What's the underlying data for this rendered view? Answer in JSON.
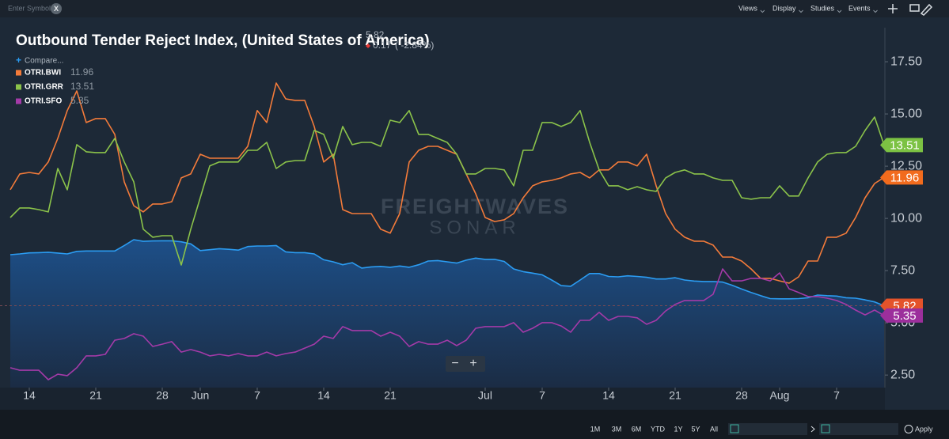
{
  "toolbar": {
    "search_placeholder": "Enter Symbol",
    "clear": "X",
    "menus": [
      "Views",
      "Display",
      "Studies",
      "Events"
    ]
  },
  "chart_data": {
    "type": "line",
    "title": "Outbound Tender Reject Index, (United States of America)",
    "change": "0.17",
    "change_pct": "( -2.84%)",
    "compare": "Compare...",
    "watermark": [
      "FREIGHTWAVES",
      "SONAR"
    ],
    "zoom": [
      "−",
      "+"
    ],
    "x": [
      "May 12",
      "May 13",
      "May 14",
      "May 15",
      "May 16",
      "May 17",
      "May 18",
      "May 19",
      "May 20",
      "May 21",
      "May 22",
      "May 23",
      "May 24",
      "May 25",
      "May 26",
      "May 27",
      "May 28",
      "May 29",
      "May 30",
      "May 31",
      "Jun 1",
      "Jun 2",
      "Jun 3",
      "Jun 4",
      "Jun 5",
      "Jun 6",
      "Jun 7",
      "Jun 8",
      "Jun 9",
      "Jun 10",
      "Jun 11",
      "Jun 12",
      "Jun 13",
      "Jun 14",
      "Jun 15",
      "Jun 16",
      "Jun 17",
      "Jun 18",
      "Jun 19",
      "Jun 20",
      "Jun 21",
      "Jun 22",
      "Jun 23",
      "Jun 24",
      "Jun 25",
      "Jun 26",
      "Jun 27",
      "Jun 28",
      "Jun 29",
      "Jun 30",
      "Jul 1",
      "Jul 2",
      "Jul 3",
      "Jul 4",
      "Jul 5",
      "Jul 6",
      "Jul 7",
      "Jul 8",
      "Jul 9",
      "Jul 10",
      "Jul 11",
      "Jul 12",
      "Jul 13",
      "Jul 14",
      "Jul 15",
      "Jul 16",
      "Jul 17",
      "Jul 18",
      "Jul 19",
      "Jul 20",
      "Jul 21",
      "Jul 22",
      "Jul 23",
      "Jul 24",
      "Jul 25",
      "Jul 26",
      "Jul 27",
      "Jul 28",
      "Jul 29",
      "Jul 30",
      "Jul 31",
      "Aug 1",
      "Aug 2",
      "Aug 3",
      "Aug 4",
      "Aug 5",
      "Aug 6",
      "Aug 7",
      "Aug 8",
      "Aug 9",
      "Aug 10",
      "Aug 11",
      "Aug 12"
    ],
    "xticks": [
      {
        "value": "May 14",
        "label": "14"
      },
      {
        "value": "May 21",
        "label": "21"
      },
      {
        "value": "May 28",
        "label": "28"
      },
      {
        "value": "Jun 1",
        "label": "Jun"
      },
      {
        "value": "Jun 7",
        "label": "7"
      },
      {
        "value": "Jun 14",
        "label": "14"
      },
      {
        "value": "Jun 21",
        "label": "21"
      },
      {
        "value": "Jul 1",
        "label": "Jul"
      },
      {
        "value": "Jul 7",
        "label": "7"
      },
      {
        "value": "Jul 14",
        "label": "14"
      },
      {
        "value": "Jul 21",
        "label": "21"
      },
      {
        "value": "Jul 28",
        "label": "28"
      },
      {
        "value": "Aug 1",
        "label": "Aug"
      },
      {
        "value": "Aug 7",
        "label": "7"
      }
    ],
    "ylim": [
      1.9,
      19.13
    ],
    "yticks": [
      {
        "value": 2.5,
        "label": "2.50"
      },
      {
        "value": 5,
        "label": "5.00"
      },
      {
        "value": 7.5,
        "label": "7.50"
      },
      {
        "value": 10,
        "label": "10.00"
      },
      {
        "value": 12.5,
        "label": "12.50"
      },
      {
        "value": 15,
        "label": "15.00"
      },
      {
        "value": 17.5,
        "label": "17.50"
      }
    ],
    "grid": false,
    "series": [
      {
        "color": "#2b9cf2",
        "area": true,
        "badge_color": "#e4532a",
        "last_label": "5.82",
        "values": [
          8.26,
          8.3,
          8.35,
          8.36,
          8.38,
          8.34,
          8.3,
          8.42,
          8.44,
          8.44,
          8.44,
          8.44,
          8.7,
          8.98,
          8.9,
          8.92,
          8.93,
          8.93,
          8.88,
          8.78,
          8.46,
          8.5,
          8.55,
          8.52,
          8.48,
          8.65,
          8.68,
          8.68,
          8.7,
          8.4,
          8.36,
          8.36,
          8.3,
          8.02,
          7.92,
          7.78,
          7.88,
          7.62,
          7.68,
          7.7,
          7.66,
          7.72,
          7.66,
          7.78,
          7.96,
          7.98,
          7.92,
          7.86,
          8.0,
          8.1,
          8.04,
          8.04,
          7.94,
          7.58,
          7.45,
          7.38,
          7.3,
          7.05,
          6.78,
          6.75,
          7.05,
          7.36,
          7.36,
          7.22,
          7.2,
          7.25,
          7.22,
          7.18,
          7.1,
          7.1,
          7.16,
          7.05,
          7.0,
          6.98,
          6.98,
          6.95,
          6.8,
          6.62,
          6.45,
          6.3,
          6.16,
          6.15,
          6.15,
          6.16,
          6.2,
          6.33,
          6.3,
          6.28,
          6.2,
          6.18,
          6.1,
          6.0,
          5.82
        ]
      },
      {
        "name": "OTRI.BWI",
        "color": "#f47b3a",
        "badge_color": "#f26b1d",
        "last_label": "11.96",
        "values": [
          11.37,
          12.13,
          12.2,
          12.13,
          12.7,
          13.83,
          15.16,
          16.1,
          14.59,
          14.78,
          14.78,
          14.02,
          11.75,
          10.61,
          10.31,
          10.69,
          10.69,
          10.8,
          11.94,
          12.13,
          13.07,
          12.88,
          12.88,
          12.88,
          12.88,
          13.45,
          15.16,
          14.59,
          16.48,
          15.72,
          15.65,
          15.65,
          14.4,
          12.7,
          13.07,
          10.42,
          10.23,
          10.23,
          10.23,
          9.48,
          9.29,
          10.23,
          12.7,
          13.26,
          13.45,
          13.45,
          13.26,
          13.07,
          12.13,
          11.18,
          10.04,
          9.85,
          9.93,
          10.23,
          10.99,
          11.56,
          11.75,
          11.82,
          11.94,
          12.13,
          12.2,
          11.94,
          12.32,
          12.32,
          12.7,
          12.7,
          12.51,
          13.07,
          11.56,
          10.23,
          9.48,
          9.1,
          8.91,
          8.91,
          8.72,
          8.15,
          8.15,
          7.96,
          7.58,
          7.13,
          7.13,
          7.01,
          6.9,
          7.2,
          7.96,
          7.96,
          9.1,
          9.1,
          9.29,
          10.04,
          10.99,
          11.67,
          11.96
        ]
      },
      {
        "name": "OTRI.GRR",
        "color": "#8bc34a",
        "badge_color": "#7cc243",
        "last_label": "13.51",
        "values": [
          10.04,
          10.5,
          10.5,
          10.42,
          10.31,
          12.39,
          11.37,
          13.53,
          13.19,
          13.15,
          13.15,
          13.83,
          12.7,
          11.75,
          9.48,
          9.1,
          9.17,
          9.17,
          7.77,
          9.48,
          10.99,
          12.51,
          12.7,
          12.7,
          12.7,
          13.26,
          13.26,
          13.64,
          12.39,
          12.7,
          12.77,
          12.77,
          14.21,
          14.02,
          12.88,
          14.4,
          13.53,
          13.64,
          13.64,
          13.45,
          14.7,
          14.59,
          15.16,
          14.02,
          14.02,
          13.83,
          13.64,
          13.07,
          12.13,
          12.13,
          12.39,
          12.39,
          12.32,
          11.56,
          13.26,
          13.26,
          14.59,
          14.59,
          14.4,
          14.59,
          15.16,
          13.64,
          12.32,
          11.56,
          11.56,
          11.37,
          11.52,
          11.37,
          11.29,
          11.94,
          12.2,
          12.32,
          12.13,
          12.13,
          11.94,
          11.82,
          11.82,
          10.99,
          10.92,
          10.99,
          10.99,
          11.56,
          11.07,
          11.07,
          11.94,
          12.7,
          13.07,
          13.15,
          13.15,
          13.45,
          14.21,
          14.85,
          13.51
        ]
      },
      {
        "name": "OTRI.SFO",
        "color": "#a43aa8",
        "badge_color": "#9c2f9c",
        "last_label": "5.35",
        "values": [
          2.85,
          2.73,
          2.73,
          2.73,
          2.28,
          2.54,
          2.47,
          2.85,
          3.42,
          3.42,
          3.49,
          4.17,
          4.25,
          4.48,
          4.36,
          3.87,
          3.98,
          4.1,
          3.6,
          3.72,
          3.6,
          3.42,
          3.49,
          3.42,
          3.53,
          3.42,
          3.42,
          3.6,
          3.42,
          3.53,
          3.6,
          3.79,
          3.98,
          4.36,
          4.25,
          4.82,
          4.63,
          4.63,
          4.63,
          4.36,
          4.55,
          4.36,
          3.87,
          4.1,
          3.98,
          3.98,
          4.17,
          3.91,
          4.17,
          4.74,
          4.82,
          4.82,
          4.82,
          5.01,
          4.55,
          4.74,
          5.01,
          5.01,
          4.85,
          4.55,
          5.12,
          5.12,
          5.5,
          5.12,
          5.31,
          5.31,
          5.24,
          4.93,
          5.12,
          5.57,
          5.88,
          6.07,
          6.07,
          6.07,
          6.37,
          7.58,
          7.01,
          7.01,
          7.13,
          7.13,
          7.01,
          7.39,
          6.63,
          6.45,
          6.26,
          6.26,
          6.18,
          6.07,
          5.88,
          5.61,
          5.38,
          5.61,
          5.35
        ]
      }
    ]
  },
  "footer": {
    "ranges": [
      "1M",
      "3M",
      "6M",
      "YTD",
      "1Y",
      "5Y",
      "All"
    ],
    "apply": "Apply"
  }
}
